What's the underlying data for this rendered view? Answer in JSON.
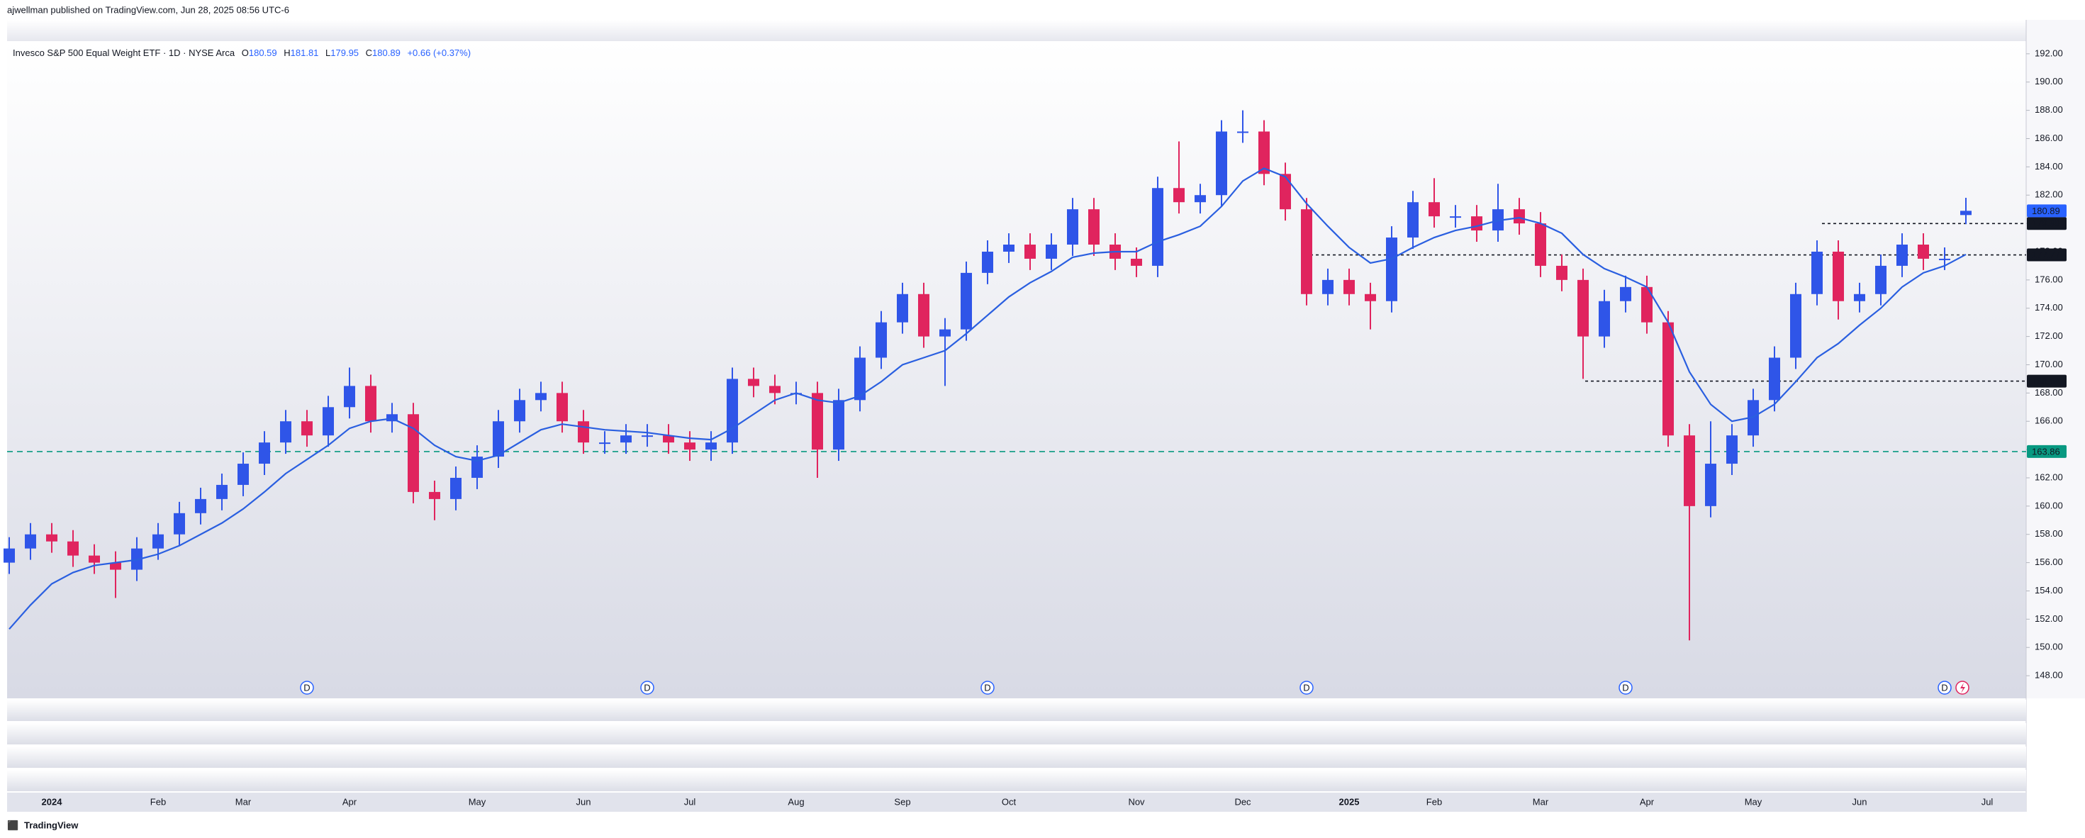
{
  "page": {
    "attribution": "ajwellman published on TradingView.com, Jun 28, 2025 08:56 UTC-6",
    "brand": "TradingView"
  },
  "chart_data": {
    "type": "candlestick",
    "title": "Invesco S&P 500 Equal Weight ETF · 1D · NYSE Arca",
    "ohlc_labels": [
      "O",
      "H",
      "L",
      "C"
    ],
    "change": "+0.66 (+0.37%)",
    "categories": [
      null,
      null,
      "2024",
      null,
      null,
      null,
      null,
      "Feb",
      null,
      null,
      null,
      "Mar",
      null,
      null,
      null,
      null,
      "Apr",
      null,
      null,
      null,
      null,
      null,
      "May",
      null,
      null,
      null,
      null,
      "Jun",
      null,
      null,
      null,
      null,
      "Jul",
      null,
      null,
      null,
      null,
      "Aug",
      null,
      null,
      null,
      null,
      "Sep",
      null,
      null,
      null,
      null,
      "Oct",
      null,
      null,
      null,
      null,
      null,
      "Nov",
      null,
      null,
      null,
      null,
      "Dec",
      null,
      null,
      null,
      null,
      "2025",
      null,
      null,
      null,
      "Feb",
      null,
      null,
      null,
      null,
      "Mar",
      null,
      null,
      null,
      null,
      "Apr",
      null,
      null,
      null,
      null,
      "May",
      null,
      null,
      null,
      null,
      "Jun",
      null,
      null,
      null,
      null,
      null,
      "Jul"
    ],
    "candles": {
      "up_color": "#2f55e8",
      "down_color": "#e0245e",
      "open": [
        156,
        157,
        158,
        157.5,
        156.5,
        156,
        155.5,
        157,
        158,
        159.5,
        160.5,
        161.5,
        163,
        164.5,
        166,
        165,
        167,
        168.5,
        166,
        166.5,
        161,
        160.5,
        162,
        163.5,
        166,
        167.5,
        168,
        166,
        164.5,
        164.5,
        165,
        165,
        164.5,
        164,
        164.5,
        169,
        168.5,
        168,
        168,
        164,
        167.5,
        170.5,
        173,
        175,
        172,
        172.5,
        176.5,
        178,
        178.5,
        177.5,
        178.5,
        181,
        178.5,
        177.5,
        177,
        182.5,
        181.5,
        182,
        186.5,
        186.5,
        183.5,
        181,
        175,
        176,
        175,
        174.5,
        179,
        181.5,
        180.5,
        180.5,
        179.5,
        181,
        180,
        177,
        176,
        172,
        174.5,
        175.5,
        173,
        165,
        160,
        163,
        165,
        167.5,
        170.5,
        175,
        178,
        174.5,
        175,
        177,
        178.5,
        177.5,
        180.59,
        null
      ],
      "high": [
        157.8,
        158.8,
        158.8,
        158.3,
        157.3,
        156.8,
        157.8,
        158.8,
        160.3,
        161.3,
        162.3,
        163.8,
        165.3,
        166.8,
        166.8,
        167.8,
        169.8,
        169.3,
        167.3,
        167.3,
        161.8,
        162.8,
        164.3,
        166.8,
        168.3,
        168.8,
        168.8,
        166.8,
        165.3,
        165.8,
        165.8,
        165.8,
        165.3,
        165.3,
        169.8,
        169.8,
        169.3,
        168.8,
        168.8,
        168.3,
        171.3,
        173.8,
        175.8,
        175.8,
        173.3,
        177.3,
        178.8,
        179.3,
        179.3,
        179.3,
        181.8,
        181.8,
        179.3,
        178.3,
        183.3,
        185.8,
        182.8,
        187.3,
        188,
        187.3,
        184.3,
        181.8,
        176.8,
        176.8,
        175.8,
        179.8,
        182.3,
        183.2,
        181.3,
        181.3,
        182.8,
        181.8,
        180.8,
        177.8,
        176.8,
        175.3,
        176.3,
        176.3,
        173.8,
        165.8,
        166,
        165.8,
        168.3,
        171.3,
        175.8,
        178.8,
        178.8,
        175.8,
        177.8,
        179.3,
        179.3,
        178.3,
        181.81,
        null
      ],
      "low": [
        155.2,
        156.2,
        156.7,
        155.7,
        155.2,
        153.5,
        154.7,
        156.2,
        157.2,
        158.7,
        159.7,
        160.7,
        162.2,
        163.7,
        164.2,
        164.2,
        166.2,
        165.2,
        165.2,
        160.2,
        159,
        159.7,
        161.2,
        162.7,
        165.2,
        166.7,
        165.2,
        163.7,
        163.7,
        163.7,
        164.2,
        163.7,
        163.2,
        163.2,
        163.7,
        167.7,
        167.2,
        167.2,
        162,
        163.2,
        166.7,
        169.7,
        172.2,
        171.2,
        168.5,
        171.7,
        175.7,
        177.2,
        176.7,
        176.7,
        177.7,
        177.7,
        176.7,
        176.2,
        176.2,
        180.7,
        180.7,
        181.2,
        185.7,
        182.7,
        180.2,
        174.2,
        174.2,
        174.2,
        172.5,
        173.7,
        178.2,
        179.7,
        179.7,
        178.7,
        178.7,
        179.2,
        176.2,
        175.2,
        169,
        171.2,
        173.7,
        172.2,
        164.2,
        150.5,
        159.2,
        162.2,
        164.2,
        166.7,
        169.7,
        174.2,
        173.2,
        173.7,
        174.2,
        176.2,
        176.7,
        176.7,
        179.95,
        null
      ],
      "close": [
        157,
        158,
        157.5,
        156.5,
        156,
        155.5,
        157,
        158,
        159.5,
        160.5,
        161.5,
        163,
        164.5,
        166,
        165,
        167,
        168.5,
        166,
        166.5,
        161,
        160.5,
        162,
        163.5,
        166,
        167.5,
        168,
        166,
        164.5,
        164.5,
        165,
        165,
        164.5,
        164,
        164.5,
        169,
        168.5,
        168,
        168,
        164,
        167.5,
        170.5,
        173,
        175,
        172,
        172.5,
        176.5,
        178,
        178.5,
        177.5,
        178.5,
        181,
        178.5,
        177.5,
        177,
        182.5,
        181.5,
        182,
        186.5,
        186.5,
        183.5,
        181,
        175,
        176,
        175,
        174.5,
        179,
        181.5,
        180.5,
        180.5,
        179.5,
        181,
        180,
        177,
        176,
        172,
        174.5,
        175.5,
        173,
        165,
        160,
        163,
        165,
        167.5,
        170.5,
        175,
        178,
        174.5,
        175,
        177,
        178.5,
        177.5,
        177.5,
        180.89,
        null
      ]
    },
    "moving_average": {
      "color": "#2a5fe0",
      "values": [
        151.3,
        153,
        154.5,
        155.3,
        155.8,
        156,
        156.2,
        156.6,
        157.2,
        158,
        158.8,
        159.8,
        161,
        162.3,
        163.3,
        164.3,
        165.5,
        166,
        166.2,
        165.5,
        164.3,
        163.5,
        163.2,
        163.6,
        164.5,
        165.4,
        165.8,
        165.6,
        165.4,
        165.3,
        165.2,
        165,
        164.8,
        164.7,
        165.5,
        166.5,
        167.5,
        168,
        167.5,
        167.3,
        167.8,
        168.8,
        170,
        170.5,
        171,
        172.2,
        173.5,
        174.8,
        175.8,
        176.6,
        177.6,
        177.9,
        178,
        178,
        178.7,
        179.2,
        179.8,
        181.2,
        183,
        183.9,
        183.3,
        181.4,
        179.8,
        178.3,
        177.2,
        177.5,
        178.3,
        179,
        179.5,
        179.8,
        180.2,
        180.4,
        180,
        179.3,
        177.8,
        176.8,
        176.2,
        175.5,
        173,
        169.5,
        167.2,
        166,
        166.3,
        167.2,
        168.8,
        170.5,
        171.5,
        172.8,
        174,
        175.5,
        176.5,
        177,
        177.8,
        null
      ]
    },
    "levels": [
      {
        "value": 179.99,
        "color": "#131722"
      },
      {
        "value": 177.77,
        "color": "#131722"
      },
      {
        "value": 168.84,
        "color": "#131722"
      },
      {
        "value": 163.86,
        "color": "#089981"
      }
    ],
    "dividends": [
      "D",
      "D",
      "D",
      "D",
      "D",
      "D"
    ],
    "ylim": [
      146.4,
      194.4
    ],
    "yticks": [
      {
        "value": 148,
        "label": "148.00"
      },
      {
        "value": 150,
        "label": "150.00"
      },
      {
        "value": 152,
        "label": "152.00"
      },
      {
        "value": 154,
        "label": "154.00"
      },
      {
        "value": 156,
        "label": "156.00"
      },
      {
        "value": 158,
        "label": "158.00"
      },
      {
        "value": 160,
        "label": "160.00"
      },
      {
        "value": 162,
        "label": "162.00"
      },
      {
        "value": 164,
        "label": "164.00"
      },
      {
        "value": 166,
        "label": "166.00"
      },
      {
        "value": 168,
        "label": "168.00"
      },
      {
        "value": 170,
        "label": "170.00"
      },
      {
        "value": 172,
        "label": "172.00"
      },
      {
        "value": 174,
        "label": "174.00"
      },
      {
        "value": 176,
        "label": "176.00"
      },
      {
        "value": 178,
        "label": "178.00"
      },
      {
        "value": 180,
        "label": "180.00"
      },
      {
        "value": 182,
        "label": "182.00"
      },
      {
        "value": 184,
        "label": "184.00"
      },
      {
        "value": 186,
        "label": "186.00"
      },
      {
        "value": 188,
        "label": "188.00"
      },
      {
        "value": 190,
        "label": "190.00"
      },
      {
        "value": 192,
        "label": "192.00"
      }
    ],
    "grid": false
  }
}
